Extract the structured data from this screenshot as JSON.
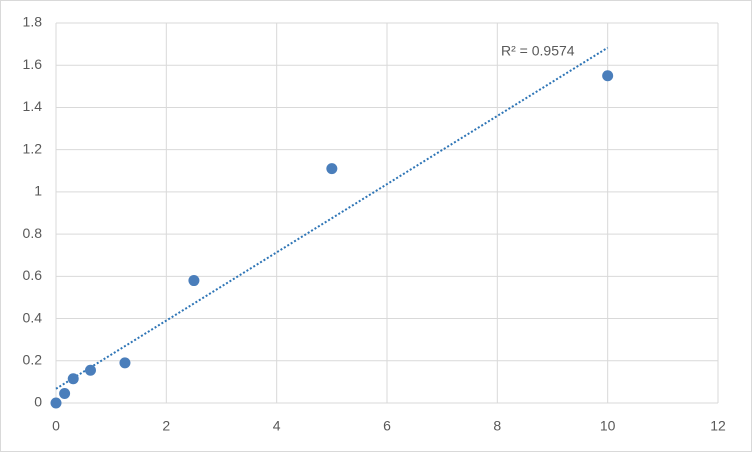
{
  "chart_data": {
    "type": "scatter",
    "x": [
      0,
      0.156,
      0.3125,
      0.625,
      1.25,
      2.5,
      5,
      10
    ],
    "series": [
      {
        "color": "#4a7ebb",
        "values": [
          0,
          0.045,
          0.115,
          0.155,
          0.19,
          0.58,
          1.11,
          1.55
        ]
      }
    ],
    "trendline": {
      "type": "linear",
      "color": "#2e75b6",
      "style": "dotted"
    },
    "annotations": [
      "R² = 0.9574"
    ],
    "xlim": [
      0,
      12
    ],
    "xticks": [
      0,
      2,
      4,
      6,
      8,
      10,
      12
    ],
    "ylim": [
      0,
      1.8
    ],
    "yticks": [
      0,
      0.2,
      0.4,
      0.6,
      0.8,
      1,
      1.2,
      1.4,
      1.6,
      1.8
    ],
    "grid": true
  }
}
